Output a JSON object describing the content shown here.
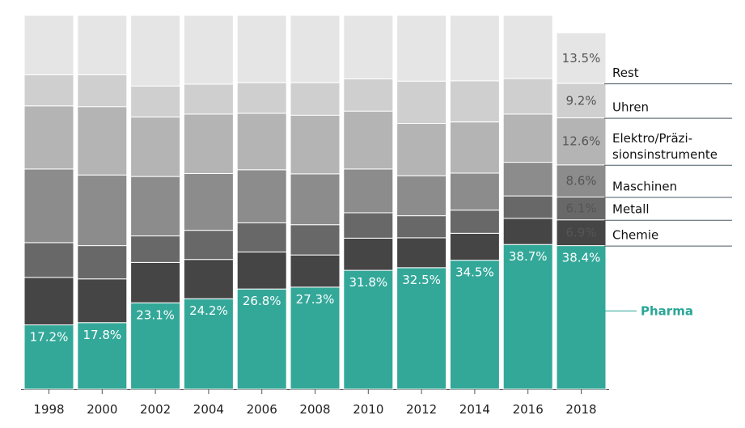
{
  "chart_data": {
    "type": "bar",
    "stacked": true,
    "normalized": true,
    "ylim": [
      0,
      100
    ],
    "categories": [
      "1998",
      "2000",
      "2002",
      "2004",
      "2006",
      "2008",
      "2010",
      "2012",
      "2014",
      "2016",
      "2018"
    ],
    "series": [
      {
        "name": "Pharma",
        "color": "#33a899",
        "values": [
          17.2,
          17.8,
          23.1,
          24.2,
          26.8,
          27.3,
          31.8,
          32.5,
          34.5,
          38.7,
          38.4
        ]
      },
      {
        "name": "Chemie",
        "color": "#454545",
        "values": [
          12.7,
          11.7,
          10.8,
          10.5,
          9.9,
          8.6,
          8.6,
          8.0,
          7.2,
          7.0,
          6.9
        ]
      },
      {
        "name": "Metall",
        "color": "#686868",
        "values": [
          9.3,
          8.9,
          7.1,
          7.8,
          7.8,
          8.1,
          6.8,
          5.9,
          6.2,
          6.0,
          6.1
        ]
      },
      {
        "name": "Maschinen",
        "color": "#8c8c8c",
        "values": [
          19.7,
          18.9,
          15.9,
          15.2,
          14.2,
          13.6,
          11.7,
          10.7,
          9.9,
          9.0,
          8.6
        ]
      },
      {
        "name": "Elektro/Präzisionsinstrumente",
        "color": "#b4b4b4",
        "values": [
          16.9,
          18.3,
          15.9,
          15.9,
          15.1,
          15.7,
          15.5,
          14.0,
          13.7,
          12.9,
          12.6
        ]
      },
      {
        "name": "Uhren",
        "color": "#cfcfcf",
        "values": [
          8.3,
          8.5,
          8.3,
          8.0,
          8.2,
          8.7,
          8.6,
          11.3,
          11.0,
          9.5,
          9.2
        ]
      },
      {
        "name": "Rest",
        "color": "#e5e5e5",
        "values": [
          15.9,
          15.9,
          18.9,
          18.4,
          18.0,
          18.0,
          17.0,
          17.6,
          17.5,
          16.9,
          13.5
        ]
      }
    ],
    "data_labels": {
      "pharma": [
        "17.2%",
        "17.8%",
        "23.1%",
        "24.2%",
        "26.8%",
        "27.3%",
        "31.8%",
        "32.5%",
        "34.5%",
        "38.7%",
        "38.4%"
      ],
      "last_bar": [
        "6.9%",
        "6.1%",
        "8.6%",
        "12.6%",
        "9.2%",
        "13.5%"
      ]
    },
    "legend": {
      "position": "right",
      "entries": [
        "Rest",
        "Uhren",
        "Elektro/Präzi-\nsionsinstrumente",
        "Maschinen",
        "Metall",
        "Chemie",
        "Pharma"
      ]
    },
    "title": "",
    "xlabel": "",
    "ylabel": ""
  }
}
